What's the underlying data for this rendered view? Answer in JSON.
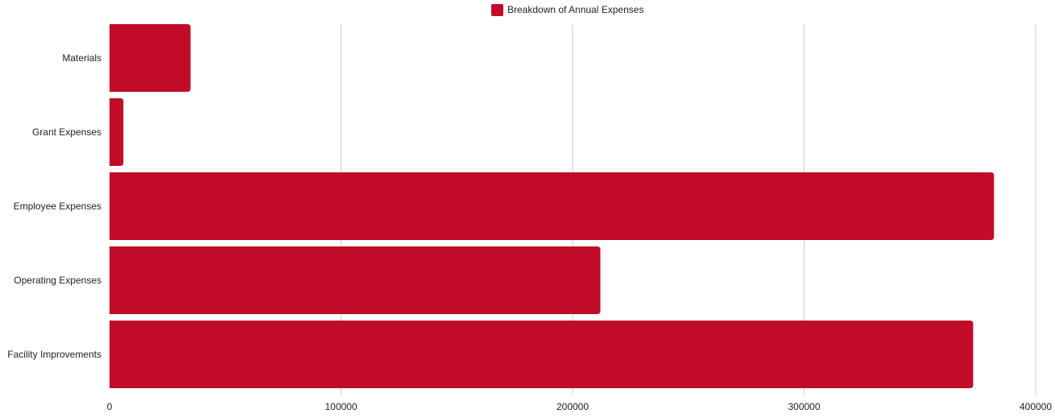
{
  "chart_data": {
    "type": "bar",
    "orientation": "horizontal",
    "categories": [
      "Materials",
      "Grant Expenses",
      "Employee Expenses",
      "Operating Expenses",
      "Facility Improvements"
    ],
    "series": [
      {
        "name": "Breakdown of Annual Expenses",
        "color": "#c20b28",
        "values": [
          35000,
          6000,
          382000,
          212000,
          373000
        ]
      }
    ],
    "x_ticks": [
      "0",
      "100000",
      "200000",
      "300000",
      "400000"
    ],
    "xlim": [
      0,
      400000
    ],
    "grid": "vertical",
    "legend_position": "top-center",
    "title": "",
    "xlabel": "",
    "ylabel": ""
  }
}
